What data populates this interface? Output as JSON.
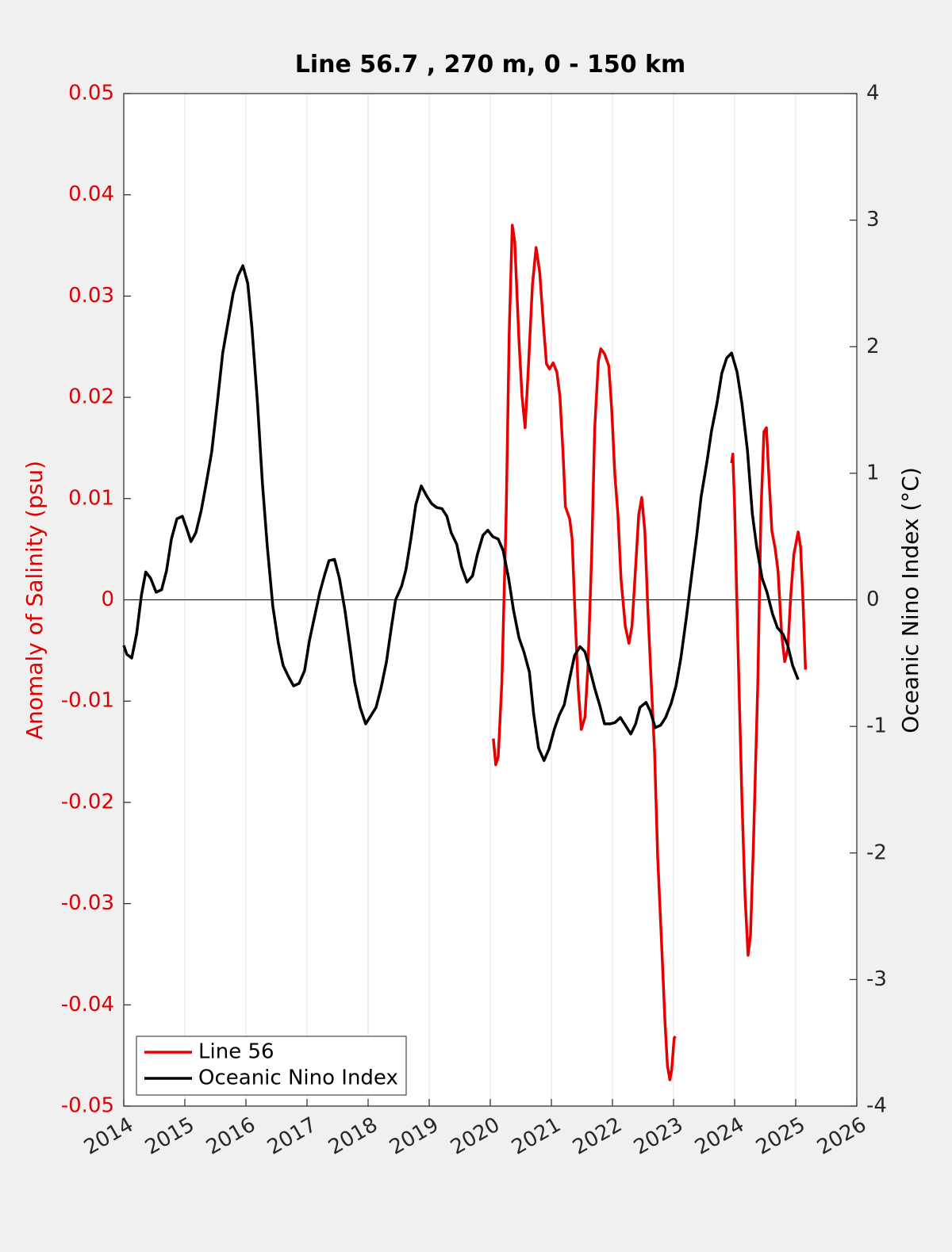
{
  "chart_data": {
    "type": "line",
    "title": "Line 56.7 , 270 m, 0 - 150 km",
    "ylabel": "Anomaly of Salinity (psu)",
    "y2label": "Oceanic Nino Index (°C)",
    "xlim": [
      2014,
      2026
    ],
    "xticks": [
      2014,
      2015,
      2016,
      2017,
      2018,
      2019,
      2020,
      2021,
      2022,
      2023,
      2024,
      2025,
      2026
    ],
    "ylim": [
      -0.05,
      0.05
    ],
    "yticks": [
      -0.05,
      -0.04,
      -0.03,
      -0.02,
      -0.01,
      0,
      0.01,
      0.02,
      0.03,
      0.04,
      0.05
    ],
    "y2lim": [
      -4,
      4
    ],
    "y2ticks": [
      -4,
      -3,
      -2,
      -1,
      0,
      1,
      2,
      3,
      4
    ],
    "ylabel_color": "#e00000",
    "grid": true,
    "legend": "lower left",
    "series": [
      {
        "name": "Line 56",
        "color": "#e80000",
        "axis": "y",
        "x": [
          2020.05,
          2020.09,
          2020.13,
          2020.19,
          2020.26,
          2020.31,
          2020.36,
          2020.4,
          2020.47,
          2020.52,
          2020.57,
          2020.62,
          2020.69,
          2020.75,
          2020.81,
          2020.87,
          2020.92,
          2020.97,
          2021.03,
          2021.09,
          2021.14,
          2021.19,
          2021.23,
          2021.3,
          2021.34,
          2021.39,
          2021.44,
          2021.49,
          2021.55,
          2021.6,
          2021.66,
          2021.71,
          2021.77,
          2021.81,
          2021.87,
          2021.94,
          2021.99,
          2022.04,
          2022.09,
          2022.14,
          2022.21,
          2022.27,
          2022.32,
          2022.38,
          2022.43,
          2022.48,
          2022.53,
          2022.58,
          2022.64,
          2022.69,
          2022.74,
          2022.81,
          2022.86,
          2022.9,
          2022.94,
          2022.97,
          2023.01,
          2023.03,
          2023.5,
          2023.95,
          2023.97,
          2024.0,
          2024.05,
          2024.12,
          2024.17,
          2024.22,
          2024.26,
          2024.31,
          2024.38,
          2024.43,
          2024.48,
          2024.52,
          2024.56,
          2024.61,
          2024.66,
          2024.71,
          2024.77,
          2024.82,
          2024.87,
          2024.92,
          2024.97,
          2025.04,
          2025.08,
          2025.12,
          2025.16
        ],
        "values": [
          -0.0137,
          -0.0163,
          -0.0155,
          -0.0081,
          0.0084,
          0.0264,
          0.037,
          0.0354,
          0.0256,
          0.0201,
          0.017,
          0.0225,
          0.0311,
          0.0348,
          0.0323,
          0.0272,
          0.0233,
          0.0228,
          0.0234,
          0.0225,
          0.0201,
          0.0146,
          0.0092,
          0.008,
          0.006,
          -0.0018,
          -0.0088,
          -0.0128,
          -0.0116,
          -0.0065,
          0.0045,
          0.017,
          0.0236,
          0.0248,
          0.0243,
          0.0231,
          0.0186,
          0.0123,
          0.0084,
          0.0021,
          -0.0026,
          -0.0043,
          -0.0026,
          0.0033,
          0.0084,
          0.0101,
          0.0068,
          -0.001,
          -0.0088,
          -0.0151,
          -0.0253,
          -0.0347,
          -0.0417,
          -0.046,
          -0.0474,
          -0.0464,
          -0.0433,
          -0.0431,
          null,
          0.0135,
          0.0144,
          0.0092,
          -0.0034,
          -0.0198,
          -0.0292,
          -0.0351,
          -0.0331,
          -0.0237,
          -0.0081,
          0.0084,
          0.0166,
          0.017,
          0.0123,
          0.0068,
          0.0052,
          0.0029,
          -0.0034,
          -0.0061,
          -0.0049,
          0.0005,
          0.0045,
          0.0067,
          0.0052,
          -0.0002,
          -0.0069
        ]
      },
      {
        "name": "Oceanic Nino Index",
        "color": "#000000",
        "axis": "y2",
        "x": [
          2014.0,
          2014.05,
          2014.13,
          2014.21,
          2014.29,
          2014.36,
          2014.44,
          2014.53,
          2014.62,
          2014.7,
          2014.78,
          2014.87,
          2014.96,
          2015.04,
          2015.1,
          2015.18,
          2015.27,
          2015.35,
          2015.44,
          2015.53,
          2015.62,
          2015.71,
          2015.79,
          2015.87,
          2015.95,
          2016.03,
          2016.1,
          2016.19,
          2016.27,
          2016.35,
          2016.44,
          2016.53,
          2016.61,
          2016.7,
          2016.78,
          2016.87,
          2016.96,
          2017.04,
          2017.12,
          2017.21,
          2017.29,
          2017.36,
          2017.45,
          2017.53,
          2017.62,
          2017.7,
          2017.78,
          2017.87,
          2017.96,
          2018.04,
          2018.13,
          2018.21,
          2018.3,
          2018.38,
          2018.45,
          2018.55,
          2018.62,
          2018.7,
          2018.78,
          2018.87,
          2018.96,
          2019.04,
          2019.12,
          2019.21,
          2019.29,
          2019.36,
          2019.45,
          2019.53,
          2019.62,
          2019.71,
          2019.79,
          2019.88,
          2019.96,
          2020.04,
          2020.13,
          2020.21,
          2020.3,
          2020.38,
          2020.47,
          2020.55,
          2020.64,
          2020.71,
          2020.79,
          2020.88,
          2020.96,
          2021.05,
          2021.13,
          2021.21,
          2021.3,
          2021.38,
          2021.47,
          2021.55,
          2021.62,
          2021.71,
          2021.79,
          2021.87,
          2021.96,
          2022.04,
          2022.13,
          2022.21,
          2022.3,
          2022.38,
          2022.45,
          2022.55,
          2022.62,
          2022.7,
          2022.79,
          2022.87,
          2022.96,
          2023.04,
          2023.12,
          2023.21,
          2023.29,
          2023.38,
          2023.45,
          2023.55,
          2023.62,
          2023.71,
          2023.79,
          2023.87,
          2023.95,
          2024.04,
          2024.12,
          2024.21,
          2024.29,
          2024.36,
          2024.45,
          2024.53,
          2024.62,
          2024.7,
          2024.79,
          2024.87,
          2024.95,
          2025.04
        ],
        "values": [
          -0.36,
          -0.43,
          -0.46,
          -0.27,
          0.04,
          0.22,
          0.17,
          0.06,
          0.08,
          0.23,
          0.48,
          0.64,
          0.66,
          0.55,
          0.46,
          0.53,
          0.71,
          0.92,
          1.17,
          1.55,
          1.95,
          2.2,
          2.42,
          2.56,
          2.64,
          2.5,
          2.14,
          1.55,
          0.92,
          0.42,
          -0.05,
          -0.34,
          -0.52,
          -0.61,
          -0.68,
          -0.66,
          -0.56,
          -0.32,
          -0.14,
          0.06,
          0.2,
          0.31,
          0.32,
          0.17,
          -0.08,
          -0.36,
          -0.65,
          -0.85,
          -0.98,
          -0.92,
          -0.85,
          -0.7,
          -0.49,
          -0.22,
          0,
          0.11,
          0.24,
          0.48,
          0.75,
          0.9,
          0.82,
          0.76,
          0.73,
          0.72,
          0.66,
          0.53,
          0.44,
          0.26,
          0.14,
          0.19,
          0.36,
          0.51,
          0.55,
          0.5,
          0.48,
          0.39,
          0.17,
          -0.08,
          -0.3,
          -0.41,
          -0.57,
          -0.9,
          -1.17,
          -1.27,
          -1.18,
          -1.02,
          -0.91,
          -0.83,
          -0.62,
          -0.44,
          -0.37,
          -0.41,
          -0.53,
          -0.7,
          -0.83,
          -0.98,
          -0.98,
          -0.97,
          -0.93,
          -0.99,
          -1.06,
          -0.98,
          -0.85,
          -0.81,
          -0.88,
          -1.01,
          -0.99,
          -0.93,
          -0.82,
          -0.68,
          -0.46,
          -0.14,
          0.17,
          0.51,
          0.81,
          1.1,
          1.33,
          1.55,
          1.79,
          1.91,
          1.95,
          1.8,
          1.55,
          1.18,
          0.68,
          0.42,
          0.17,
          0.06,
          -0.11,
          -0.22,
          -0.27,
          -0.36,
          -0.52,
          -0.63
        ]
      }
    ]
  }
}
